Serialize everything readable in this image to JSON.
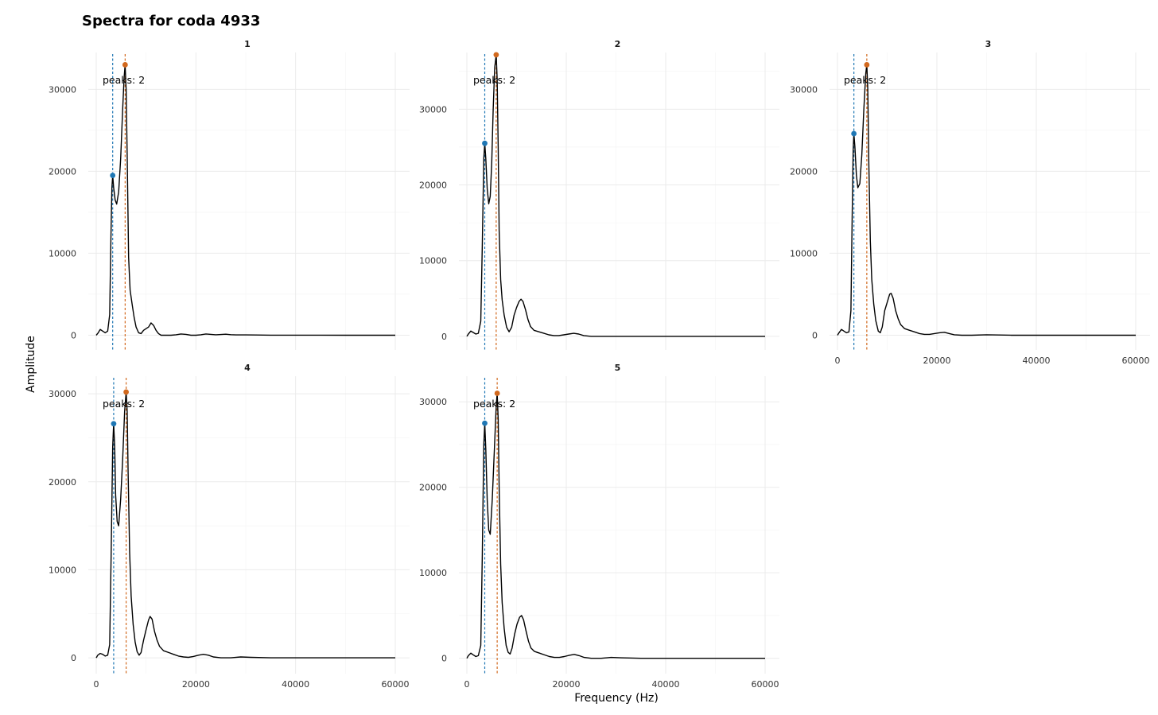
{
  "chart_data": {
    "type": "line",
    "title": "Spectra for coda 4933",
    "xlabel": "Frequency (Hz)",
    "ylabel": "Amplitude",
    "xlim": [
      0,
      60000
    ],
    "x_ticks": [
      0,
      20000,
      40000,
      60000
    ],
    "x_tick_labels": [
      "0",
      "20000",
      "40000",
      "60000"
    ],
    "y_ticks": [
      0,
      10000,
      20000,
      30000
    ],
    "y_tick_labels": [
      "0",
      "10000",
      "20000",
      "30000"
    ],
    "colors": {
      "line": "#000000",
      "peak1": "#1f77b4",
      "peak2": "#d2691e",
      "grid": "#ebebeb"
    },
    "panels": [
      {
        "id": "1",
        "ylim": [
          -1800,
          34500
        ],
        "peaks_label": "peaks: 2",
        "peak1": {
          "x": 3300,
          "y": 19500
        },
        "peak2": {
          "x": 5800,
          "y": 33000
        },
        "points": [
          [
            0,
            0
          ],
          [
            400,
            300
          ],
          [
            800,
            700
          ],
          [
            1300,
            500
          ],
          [
            1800,
            300
          ],
          [
            2300,
            500
          ],
          [
            2700,
            2500
          ],
          [
            2950,
            12000
          ],
          [
            3150,
            18000
          ],
          [
            3300,
            19500
          ],
          [
            3500,
            18000
          ],
          [
            3800,
            16500
          ],
          [
            4100,
            16000
          ],
          [
            4500,
            17500
          ],
          [
            4900,
            21500
          ],
          [
            5300,
            27500
          ],
          [
            5600,
            31500
          ],
          [
            5800,
            33000
          ],
          [
            6000,
            30000
          ],
          [
            6200,
            22000
          ],
          [
            6500,
            9500
          ],
          [
            6800,
            5500
          ],
          [
            7200,
            3800
          ],
          [
            7600,
            2200
          ],
          [
            8000,
            1000
          ],
          [
            8500,
            300
          ],
          [
            9000,
            200
          ],
          [
            9500,
            600
          ],
          [
            10000,
            800
          ],
          [
            10500,
            1000
          ],
          [
            11000,
            1500
          ],
          [
            11500,
            1200
          ],
          [
            12000,
            600
          ],
          [
            12500,
            200
          ],
          [
            13000,
            0
          ],
          [
            14000,
            0
          ],
          [
            15000,
            0
          ],
          [
            16000,
            50
          ],
          [
            17000,
            150
          ],
          [
            18000,
            100
          ],
          [
            19000,
            0
          ],
          [
            20000,
            0
          ],
          [
            21000,
            50
          ],
          [
            22000,
            150
          ],
          [
            23000,
            100
          ],
          [
            24000,
            50
          ],
          [
            25000,
            80
          ],
          [
            26000,
            120
          ],
          [
            27000,
            60
          ],
          [
            28000,
            30
          ],
          [
            30000,
            30
          ],
          [
            32000,
            20
          ],
          [
            35000,
            10
          ],
          [
            40000,
            10
          ],
          [
            45000,
            10
          ],
          [
            50000,
            0
          ],
          [
            55000,
            0
          ],
          [
            60000,
            0
          ]
        ]
      },
      {
        "id": "2",
        "ylim": [
          -1800,
          37500
        ],
        "peaks_label": "peaks: 2",
        "peak1": {
          "x": 3600,
          "y": 25500
        },
        "peak2": {
          "x": 5900,
          "y": 37200
        },
        "points": [
          [
            0,
            0
          ],
          [
            300,
            300
          ],
          [
            800,
            700
          ],
          [
            1300,
            500
          ],
          [
            1800,
            300
          ],
          [
            2300,
            400
          ],
          [
            2800,
            2000
          ],
          [
            3100,
            12000
          ],
          [
            3400,
            23500
          ],
          [
            3600,
            25500
          ],
          [
            3800,
            23500
          ],
          [
            4100,
            19500
          ],
          [
            4400,
            17500
          ],
          [
            4700,
            18500
          ],
          [
            5000,
            23000
          ],
          [
            5300,
            30000
          ],
          [
            5600,
            35500
          ],
          [
            5900,
            37200
          ],
          [
            6100,
            34000
          ],
          [
            6300,
            25000
          ],
          [
            6500,
            14000
          ],
          [
            6800,
            7500
          ],
          [
            7100,
            4800
          ],
          [
            7500,
            2800
          ],
          [
            8000,
            1200
          ],
          [
            8500,
            600
          ],
          [
            9000,
            1200
          ],
          [
            9500,
            2800
          ],
          [
            10000,
            3800
          ],
          [
            10500,
            4600
          ],
          [
            10900,
            4900
          ],
          [
            11300,
            4600
          ],
          [
            11800,
            3500
          ],
          [
            12300,
            2200
          ],
          [
            12800,
            1300
          ],
          [
            13500,
            800
          ],
          [
            14500,
            600
          ],
          [
            15500,
            400
          ],
          [
            16500,
            200
          ],
          [
            17500,
            100
          ],
          [
            18500,
            100
          ],
          [
            19500,
            200
          ],
          [
            20500,
            300
          ],
          [
            21500,
            400
          ],
          [
            22500,
            300
          ],
          [
            23500,
            100
          ],
          [
            25000,
            0
          ],
          [
            27000,
            0
          ],
          [
            30000,
            0
          ],
          [
            35000,
            0
          ],
          [
            40000,
            0
          ],
          [
            45000,
            0
          ],
          [
            50000,
            0
          ],
          [
            55000,
            0
          ],
          [
            60000,
            0
          ]
        ]
      },
      {
        "id": "3",
        "ylim": [
          -1800,
          34500
        ],
        "peaks_label": "peaks: 2",
        "peak1": {
          "x": 3300,
          "y": 24600
        },
        "peak2": {
          "x": 5900,
          "y": 33000
        },
        "points": [
          [
            0,
            0
          ],
          [
            300,
            300
          ],
          [
            800,
            700
          ],
          [
            1300,
            500
          ],
          [
            1800,
            300
          ],
          [
            2300,
            400
          ],
          [
            2700,
            3000
          ],
          [
            2950,
            14000
          ],
          [
            3150,
            22500
          ],
          [
            3300,
            24600
          ],
          [
            3500,
            23000
          ],
          [
            3800,
            19500
          ],
          [
            4100,
            18000
          ],
          [
            4500,
            18500
          ],
          [
            4900,
            22000
          ],
          [
            5300,
            27500
          ],
          [
            5700,
            32000
          ],
          [
            5900,
            33000
          ],
          [
            6100,
            30000
          ],
          [
            6300,
            21000
          ],
          [
            6600,
            11500
          ],
          [
            6900,
            6800
          ],
          [
            7300,
            3800
          ],
          [
            7700,
            1800
          ],
          [
            8200,
            500
          ],
          [
            8600,
            300
          ],
          [
            9000,
            1000
          ],
          [
            9500,
            3000
          ],
          [
            10000,
            4000
          ],
          [
            10500,
            5000
          ],
          [
            10800,
            5100
          ],
          [
            11200,
            4500
          ],
          [
            11700,
            3000
          ],
          [
            12200,
            2000
          ],
          [
            12700,
            1300
          ],
          [
            13500,
            800
          ],
          [
            14500,
            600
          ],
          [
            15500,
            400
          ],
          [
            16500,
            200
          ],
          [
            17500,
            100
          ],
          [
            18500,
            100
          ],
          [
            19500,
            200
          ],
          [
            20500,
            300
          ],
          [
            21500,
            350
          ],
          [
            22500,
            200
          ],
          [
            23500,
            50
          ],
          [
            25000,
            0
          ],
          [
            27000,
            0
          ],
          [
            30000,
            50
          ],
          [
            35000,
            0
          ],
          [
            40000,
            0
          ],
          [
            45000,
            0
          ],
          [
            50000,
            0
          ],
          [
            55000,
            0
          ],
          [
            60000,
            0
          ]
        ]
      },
      {
        "id": "4",
        "ylim": [
          -1800,
          32000
        ],
        "peaks_label": "peaks: 2",
        "peak1": {
          "x": 3500,
          "y": 26600
        },
        "peak2": {
          "x": 6000,
          "y": 30200
        },
        "points": [
          [
            0,
            0
          ],
          [
            300,
            300
          ],
          [
            800,
            500
          ],
          [
            1300,
            400
          ],
          [
            1800,
            200
          ],
          [
            2300,
            300
          ],
          [
            2700,
            1500
          ],
          [
            3000,
            12000
          ],
          [
            3300,
            24000
          ],
          [
            3500,
            26600
          ],
          [
            3700,
            24000
          ],
          [
            3900,
            18500
          ],
          [
            4200,
            15500
          ],
          [
            4500,
            15000
          ],
          [
            4900,
            18000
          ],
          [
            5300,
            22500
          ],
          [
            5700,
            28000
          ],
          [
            6000,
            30200
          ],
          [
            6200,
            28000
          ],
          [
            6400,
            21000
          ],
          [
            6700,
            12000
          ],
          [
            7000,
            7000
          ],
          [
            7400,
            3800
          ],
          [
            7800,
            1800
          ],
          [
            8200,
            700
          ],
          [
            8600,
            300
          ],
          [
            9000,
            600
          ],
          [
            9500,
            2000
          ],
          [
            10000,
            3200
          ],
          [
            10500,
            4300
          ],
          [
            10800,
            4700
          ],
          [
            11200,
            4400
          ],
          [
            11700,
            3000
          ],
          [
            12200,
            2000
          ],
          [
            12700,
            1300
          ],
          [
            13500,
            800
          ],
          [
            14500,
            600
          ],
          [
            15500,
            400
          ],
          [
            16500,
            200
          ],
          [
            17500,
            100
          ],
          [
            18500,
            50
          ],
          [
            19500,
            150
          ],
          [
            20500,
            300
          ],
          [
            21500,
            400
          ],
          [
            22500,
            300
          ],
          [
            23500,
            100
          ],
          [
            25000,
            0
          ],
          [
            27000,
            0
          ],
          [
            29000,
            100
          ],
          [
            31000,
            50
          ],
          [
            35000,
            0
          ],
          [
            40000,
            0
          ],
          [
            45000,
            0
          ],
          [
            50000,
            0
          ],
          [
            55000,
            0
          ],
          [
            60000,
            0
          ]
        ]
      },
      {
        "id": "5",
        "ylim": [
          -1800,
          33000
        ],
        "peaks_label": "peaks: 2",
        "peak1": {
          "x": 3600,
          "y": 27500
        },
        "peak2": {
          "x": 6100,
          "y": 31000
        },
        "points": [
          [
            0,
            0
          ],
          [
            300,
            300
          ],
          [
            800,
            600
          ],
          [
            1300,
            400
          ],
          [
            1800,
            200
          ],
          [
            2300,
            300
          ],
          [
            2800,
            1500
          ],
          [
            3100,
            12000
          ],
          [
            3400,
            25000
          ],
          [
            3600,
            27500
          ],
          [
            3800,
            24500
          ],
          [
            4100,
            18500
          ],
          [
            4400,
            15000
          ],
          [
            4700,
            14500
          ],
          [
            5100,
            18500
          ],
          [
            5500,
            24000
          ],
          [
            5900,
            29500
          ],
          [
            6100,
            31000
          ],
          [
            6300,
            28000
          ],
          [
            6500,
            20000
          ],
          [
            6800,
            11000
          ],
          [
            7100,
            6500
          ],
          [
            7500,
            3500
          ],
          [
            7900,
            1500
          ],
          [
            8300,
            700
          ],
          [
            8700,
            500
          ],
          [
            9100,
            1200
          ],
          [
            9600,
            2800
          ],
          [
            10100,
            4000
          ],
          [
            10600,
            4800
          ],
          [
            11000,
            5000
          ],
          [
            11400,
            4500
          ],
          [
            11900,
            3200
          ],
          [
            12400,
            2000
          ],
          [
            12900,
            1200
          ],
          [
            13600,
            800
          ],
          [
            14600,
            600
          ],
          [
            15600,
            400
          ],
          [
            16600,
            200
          ],
          [
            17600,
            100
          ],
          [
            18600,
            100
          ],
          [
            19600,
            200
          ],
          [
            20600,
            350
          ],
          [
            21600,
            450
          ],
          [
            22600,
            300
          ],
          [
            23600,
            100
          ],
          [
            25000,
            0
          ],
          [
            27000,
            0
          ],
          [
            29000,
            100
          ],
          [
            31000,
            50
          ],
          [
            35000,
            0
          ],
          [
            40000,
            0
          ],
          [
            45000,
            0
          ],
          [
            50000,
            0
          ],
          [
            55000,
            0
          ],
          [
            60000,
            0
          ]
        ]
      }
    ]
  }
}
